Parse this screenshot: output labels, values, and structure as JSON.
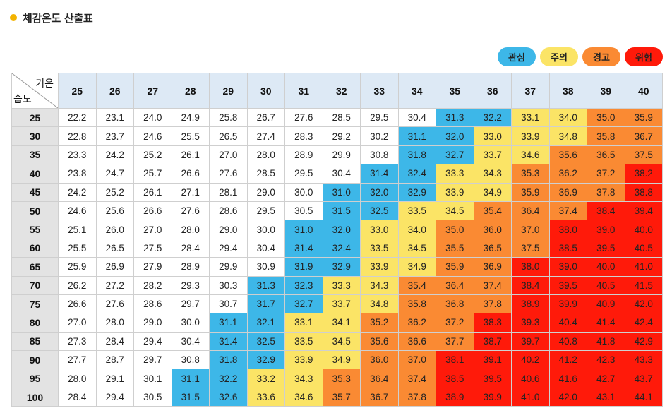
{
  "title": "체감온도 산출표",
  "legend": [
    {
      "label": "관심",
      "color": "#3db7e8"
    },
    {
      "label": "주의",
      "color": "#fbe466"
    },
    {
      "label": "경고",
      "color": "#fa8a33"
    },
    {
      "label": "위험",
      "color": "#ff1a0a"
    }
  ],
  "table": {
    "corner_temp_label": "기온",
    "corner_humidity_label": "습도",
    "temps": [
      "25",
      "26",
      "27",
      "28",
      "29",
      "30",
      "31",
      "32",
      "33",
      "34",
      "35",
      "36",
      "37",
      "38",
      "39",
      "40"
    ],
    "rows": [
      {
        "humidity": "25",
        "values": [
          "22.2",
          "23.1",
          "24.0",
          "24.9",
          "25.8",
          "26.7",
          "27.6",
          "28.5",
          "29.5",
          "30.4",
          "31.3",
          "32.2",
          "33.1",
          "34.0",
          "35.0",
          "35.9"
        ],
        "levels": [
          0,
          0,
          0,
          0,
          0,
          0,
          0,
          0,
          0,
          0,
          1,
          1,
          2,
          2,
          3,
          3
        ]
      },
      {
        "humidity": "30",
        "values": [
          "22.8",
          "23.7",
          "24.6",
          "25.5",
          "26.5",
          "27.4",
          "28.3",
          "29.2",
          "30.2",
          "31.1",
          "32.0",
          "33.0",
          "33.9",
          "34.8",
          "35.8",
          "36.7"
        ],
        "levels": [
          0,
          0,
          0,
          0,
          0,
          0,
          0,
          0,
          0,
          1,
          1,
          2,
          2,
          2,
          3,
          3
        ]
      },
      {
        "humidity": "35",
        "values": [
          "23.3",
          "24.2",
          "25.2",
          "26.1",
          "27.0",
          "28.0",
          "28.9",
          "29.9",
          "30.8",
          "31.8",
          "32.7",
          "33.7",
          "34.6",
          "35.6",
          "36.5",
          "37.5"
        ],
        "levels": [
          0,
          0,
          0,
          0,
          0,
          0,
          0,
          0,
          0,
          1,
          1,
          2,
          2,
          3,
          3,
          3
        ]
      },
      {
        "humidity": "40",
        "values": [
          "23.8",
          "24.7",
          "25.7",
          "26.6",
          "27.6",
          "28.5",
          "29.5",
          "30.4",
          "31.4",
          "32.4",
          "33.3",
          "34.3",
          "35.3",
          "36.2",
          "37.2",
          "38.2"
        ],
        "levels": [
          0,
          0,
          0,
          0,
          0,
          0,
          0,
          0,
          1,
          1,
          2,
          2,
          3,
          3,
          3,
          4
        ]
      },
      {
        "humidity": "45",
        "values": [
          "24.2",
          "25.2",
          "26.1",
          "27.1",
          "28.1",
          "29.0",
          "30.0",
          "31.0",
          "32.0",
          "32.9",
          "33.9",
          "34.9",
          "35.9",
          "36.9",
          "37.8",
          "38.8"
        ],
        "levels": [
          0,
          0,
          0,
          0,
          0,
          0,
          0,
          1,
          1,
          1,
          2,
          2,
          3,
          3,
          3,
          4
        ]
      },
      {
        "humidity": "50",
        "values": [
          "24.6",
          "25.6",
          "26.6",
          "27.6",
          "28.6",
          "29.5",
          "30.5",
          "31.5",
          "32.5",
          "33.5",
          "34.5",
          "35.4",
          "36.4",
          "37.4",
          "38.4",
          "39.4"
        ],
        "levels": [
          0,
          0,
          0,
          0,
          0,
          0,
          0,
          1,
          1,
          2,
          2,
          3,
          3,
          3,
          4,
          4
        ]
      },
      {
        "humidity": "55",
        "values": [
          "25.1",
          "26.0",
          "27.0",
          "28.0",
          "29.0",
          "30.0",
          "31.0",
          "32.0",
          "33.0",
          "34.0",
          "35.0",
          "36.0",
          "37.0",
          "38.0",
          "39.0",
          "40.0"
        ],
        "levels": [
          0,
          0,
          0,
          0,
          0,
          0,
          1,
          1,
          2,
          2,
          3,
          3,
          3,
          4,
          4,
          4
        ]
      },
      {
        "humidity": "60",
        "values": [
          "25.5",
          "26.5",
          "27.5",
          "28.4",
          "29.4",
          "30.4",
          "31.4",
          "32.4",
          "33.5",
          "34.5",
          "35.5",
          "36.5",
          "37.5",
          "38.5",
          "39.5",
          "40.5"
        ],
        "levels": [
          0,
          0,
          0,
          0,
          0,
          0,
          1,
          1,
          2,
          2,
          3,
          3,
          3,
          4,
          4,
          4
        ]
      },
      {
        "humidity": "65",
        "values": [
          "25.9",
          "26.9",
          "27.9",
          "28.9",
          "29.9",
          "30.9",
          "31.9",
          "32.9",
          "33.9",
          "34.9",
          "35.9",
          "36.9",
          "38.0",
          "39.0",
          "40.0",
          "41.0"
        ],
        "levels": [
          0,
          0,
          0,
          0,
          0,
          0,
          1,
          1,
          2,
          2,
          3,
          3,
          4,
          4,
          4,
          4
        ]
      },
      {
        "humidity": "70",
        "values": [
          "26.2",
          "27.2",
          "28.2",
          "29.3",
          "30.3",
          "31.3",
          "32.3",
          "33.3",
          "34.3",
          "35.4",
          "36.4",
          "37.4",
          "38.4",
          "39.5",
          "40.5",
          "41.5"
        ],
        "levels": [
          0,
          0,
          0,
          0,
          0,
          1,
          1,
          2,
          2,
          3,
          3,
          3,
          4,
          4,
          4,
          4
        ]
      },
      {
        "humidity": "75",
        "values": [
          "26.6",
          "27.6",
          "28.6",
          "29.7",
          "30.7",
          "31.7",
          "32.7",
          "33.7",
          "34.8",
          "35.8",
          "36.8",
          "37.8",
          "38.9",
          "39.9",
          "40.9",
          "42.0"
        ],
        "levels": [
          0,
          0,
          0,
          0,
          0,
          1,
          1,
          2,
          2,
          3,
          3,
          3,
          4,
          4,
          4,
          4
        ]
      },
      {
        "humidity": "80",
        "values": [
          "27.0",
          "28.0",
          "29.0",
          "30.0",
          "31.1",
          "32.1",
          "33.1",
          "34.1",
          "35.2",
          "36.2",
          "37.2",
          "38.3",
          "39.3",
          "40.4",
          "41.4",
          "42.4"
        ],
        "levels": [
          0,
          0,
          0,
          0,
          1,
          1,
          2,
          2,
          3,
          3,
          3,
          4,
          4,
          4,
          4,
          4
        ]
      },
      {
        "humidity": "85",
        "values": [
          "27.3",
          "28.4",
          "29.4",
          "30.4",
          "31.4",
          "32.5",
          "33.5",
          "34.5",
          "35.6",
          "36.6",
          "37.7",
          "38.7",
          "39.7",
          "40.8",
          "41.8",
          "42.9"
        ],
        "levels": [
          0,
          0,
          0,
          0,
          1,
          1,
          2,
          2,
          3,
          3,
          3,
          4,
          4,
          4,
          4,
          4
        ]
      },
      {
        "humidity": "90",
        "values": [
          "27.7",
          "28.7",
          "29.7",
          "30.8",
          "31.8",
          "32.9",
          "33.9",
          "34.9",
          "36.0",
          "37.0",
          "38.1",
          "39.1",
          "40.2",
          "41.2",
          "42.3",
          "43.3"
        ],
        "levels": [
          0,
          0,
          0,
          0,
          1,
          1,
          2,
          2,
          3,
          3,
          4,
          4,
          4,
          4,
          4,
          4
        ]
      },
      {
        "humidity": "95",
        "values": [
          "28.0",
          "29.1",
          "30.1",
          "31.1",
          "32.2",
          "33.2",
          "34.3",
          "35.3",
          "36.4",
          "37.4",
          "38.5",
          "39.5",
          "40.6",
          "41.6",
          "42.7",
          "43.7"
        ],
        "levels": [
          0,
          0,
          0,
          1,
          1,
          2,
          2,
          3,
          3,
          3,
          4,
          4,
          4,
          4,
          4,
          4
        ]
      },
      {
        "humidity": "100",
        "values": [
          "28.4",
          "29.4",
          "30.5",
          "31.5",
          "32.6",
          "33.6",
          "34.6",
          "35.7",
          "36.7",
          "37.8",
          "38.9",
          "39.9",
          "41.0",
          "42.0",
          "43.1",
          "44.1"
        ],
        "levels": [
          0,
          0,
          0,
          1,
          1,
          2,
          2,
          3,
          3,
          3,
          4,
          4,
          4,
          4,
          4,
          4
        ]
      }
    ]
  }
}
